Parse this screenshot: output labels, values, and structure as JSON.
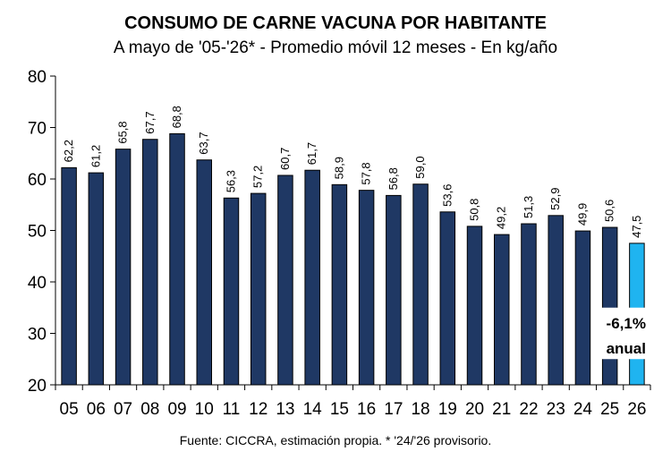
{
  "chart_data": {
    "type": "bar",
    "title": "CONSUMO DE CARNE VACUNA POR HABITANTE",
    "subtitle": "A mayo de '05-'26* - Promedio móvil 12 meses -  En kg/año",
    "categories": [
      "05",
      "06",
      "07",
      "08",
      "09",
      "10",
      "11",
      "12",
      "13",
      "14",
      "15",
      "16",
      "17",
      "18",
      "19",
      "20",
      "21",
      "22",
      "23",
      "24",
      "25",
      "26"
    ],
    "values": [
      62.2,
      61.2,
      65.8,
      67.7,
      68.8,
      63.7,
      56.3,
      57.2,
      60.7,
      61.7,
      58.9,
      57.8,
      56.8,
      59.0,
      53.6,
      50.8,
      49.2,
      51.3,
      52.9,
      49.9,
      50.6,
      47.5
    ],
    "value_labels": [
      "62,2",
      "61,2",
      "65,8",
      "67,7",
      "68,8",
      "63,7",
      "56,3",
      "57,2",
      "60,7",
      "61,7",
      "58,9",
      "57,8",
      "56,8",
      "59,0",
      "53,6",
      "50,8",
      "49,2",
      "51,3",
      "52,9",
      "49,9",
      "50,6",
      "47,5"
    ],
    "ylim": [
      20,
      80
    ],
    "yticks": [
      20,
      30,
      40,
      50,
      60,
      70,
      80
    ],
    "grid": false,
    "bar_color": "#1f3864",
    "highlight_color": "#1fb4f0",
    "highlight_index": 21,
    "annotation": {
      "line1": "-6,1%",
      "line2": "anual",
      "y_top": 35,
      "y_bottom": 25
    },
    "source": "Fuente: CICCRA, estimación propia. * '24/'26 provisorio."
  }
}
